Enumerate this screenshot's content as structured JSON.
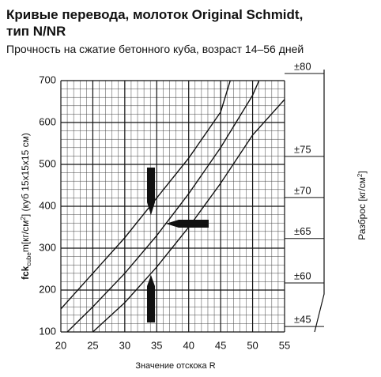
{
  "chart_data": {
    "type": "line",
    "title": [
      "Кривые перевода, молоток Original Schmidt,",
      "тип N/NR"
    ],
    "subtitle": "Прочность на сжатие бетонного куба, возраст 14–56 дней",
    "x_label": "Значение отскока R",
    "y_label": [
      "fck",
      "cube",
      "m[кг/см",
      "2",
      "] (куб 15x15x15 см)"
    ],
    "y2_label": [
      "Разброс [кг/см",
      "2",
      "]"
    ],
    "xlim": [
      20,
      55
    ],
    "xticks": [
      20,
      25,
      30,
      35,
      40,
      45,
      50,
      55
    ],
    "ylim": [
      100,
      700
    ],
    "yticks": [
      100,
      200,
      300,
      400,
      500,
      600,
      700
    ],
    "y2ticks": [
      {
        "value": 717,
        "label": "±80"
      },
      {
        "value": 519,
        "label": "±75"
      },
      {
        "value": 421,
        "label": "±70"
      },
      {
        "value": 323,
        "label": "±65"
      },
      {
        "value": 217,
        "label": "±60"
      },
      {
        "value": 113,
        "label": "±45"
      }
    ],
    "grid": true,
    "series": [
      {
        "color": "#111",
        "x": [
          20,
          25,
          30,
          35,
          40,
          45,
          46.5
        ],
        "values": [
          155,
          240,
          325,
          420,
          515,
          625,
          700
        ]
      },
      {
        "color": "#111",
        "x": [
          21,
          25,
          30,
          35,
          40,
          45,
          50,
          51
        ],
        "values": [
          100,
          160,
          240,
          330,
          430,
          540,
          665,
          700
        ]
      },
      {
        "color": "#111",
        "x": [
          25,
          30,
          35,
          40,
          45,
          50,
          55
        ],
        "values": [
          100,
          170,
          255,
          350,
          455,
          570,
          655
        ]
      }
    ]
  }
}
